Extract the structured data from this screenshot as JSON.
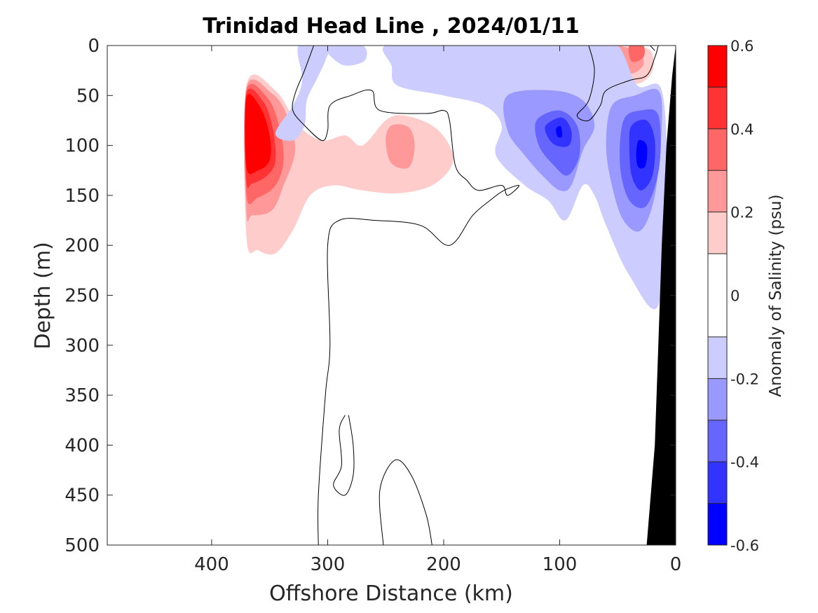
{
  "chart_data": {
    "type": "heatmap",
    "title": "Trinidad Head Line , 2024/01/11",
    "xlabel": "Offshore Distance (km)",
    "ylabel": "Depth (m)",
    "xlim": [
      490,
      0
    ],
    "ylim": [
      500,
      0
    ],
    "x_ticks": [
      400,
      300,
      200,
      100,
      0
    ],
    "y_ticks": [
      0,
      50,
      100,
      150,
      200,
      250,
      300,
      350,
      400,
      450,
      500
    ],
    "colorbar": {
      "label": "Anomaly of Salinity (psu)",
      "range": [
        -0.6,
        0.6
      ],
      "ticks": [
        0.6,
        0.4,
        0.2,
        0,
        -0.2,
        -0.4,
        -0.6
      ],
      "levels": [
        {
          "min": 0.5,
          "max": 0.6,
          "color": "#ff0000"
        },
        {
          "min": 0.4,
          "max": 0.5,
          "color": "#ff3333"
        },
        {
          "min": 0.3,
          "max": 0.4,
          "color": "#ff6666"
        },
        {
          "min": 0.2,
          "max": 0.3,
          "color": "#ff9999"
        },
        {
          "min": 0.1,
          "max": 0.2,
          "color": "#ffcccc"
        },
        {
          "min": -0.1,
          "max": 0.1,
          "color": "#ffffff"
        },
        {
          "min": -0.2,
          "max": -0.1,
          "color": "#ccccff"
        },
        {
          "min": -0.3,
          "max": -0.2,
          "color": "#9999ff"
        },
        {
          "min": -0.4,
          "max": -0.3,
          "color": "#6666ff"
        },
        {
          "min": -0.5,
          "max": -0.4,
          "color": "#3333ff"
        },
        {
          "min": -0.6,
          "max": -0.5,
          "color": "#0000ff"
        }
      ]
    },
    "features": [
      {
        "name": "offshore-salty-core",
        "level": 0.15,
        "color": "#ffcccc",
        "points": [
          [
            370,
            40
          ],
          [
            345,
            45
          ],
          [
            325,
            80
          ],
          [
            305,
            95
          ],
          [
            285,
            90
          ],
          [
            270,
            100
          ],
          [
            250,
            75
          ],
          [
            235,
            70
          ],
          [
            210,
            80
          ],
          [
            195,
            100
          ],
          [
            193,
            120
          ],
          [
            210,
            140
          ],
          [
            240,
            148
          ],
          [
            270,
            145
          ],
          [
            295,
            140
          ],
          [
            315,
            150
          ],
          [
            330,
            185
          ],
          [
            345,
            208
          ],
          [
            360,
            205
          ],
          [
            370,
            192
          ]
        ]
      },
      {
        "name": "offshore-salty-core",
        "level": 0.25,
        "color": "#ff9999",
        "points": [
          [
            370,
            42
          ],
          [
            348,
            48
          ],
          [
            335,
            70
          ],
          [
            328,
            105
          ],
          [
            338,
            140
          ],
          [
            348,
            165
          ],
          [
            365,
            170
          ],
          [
            370,
            165
          ]
        ]
      },
      {
        "name": "mid-salty-patch",
        "level": 0.25,
        "color": "#ff9999",
        "points": [
          [
            245,
            80
          ],
          [
            230,
            82
          ],
          [
            225,
            100
          ],
          [
            230,
            122
          ],
          [
            245,
            118
          ],
          [
            250,
            95
          ]
        ]
      },
      {
        "name": "offshore-salty-core",
        "level": 0.35,
        "color": "#ff6666",
        "points": [
          [
            370,
            45
          ],
          [
            352,
            52
          ],
          [
            342,
            80
          ],
          [
            338,
            115
          ],
          [
            345,
            140
          ],
          [
            360,
            152
          ],
          [
            370,
            150
          ]
        ]
      },
      {
        "name": "offshore-salty-core",
        "level": 0.45,
        "color": "#ff3333",
        "points": [
          [
            370,
            48
          ],
          [
            355,
            57
          ],
          [
            347,
            85
          ],
          [
            345,
            115
          ],
          [
            352,
            130
          ],
          [
            365,
            138
          ],
          [
            370,
            135
          ]
        ]
      },
      {
        "name": "offshore-salty-core",
        "level": 0.55,
        "color": "#ff0000",
        "points": [
          [
            370,
            52
          ],
          [
            358,
            62
          ],
          [
            350,
            90
          ],
          [
            350,
            115
          ],
          [
            360,
            125
          ],
          [
            370,
            122
          ]
        ]
      },
      {
        "name": "nearshore-salty-patch",
        "level": 0.15,
        "color": "#ffcccc",
        "points": [
          [
            60,
            0
          ],
          [
            40,
            0
          ],
          [
            22,
            5
          ],
          [
            20,
            25
          ],
          [
            32,
            38
          ],
          [
            50,
            32
          ],
          [
            58,
            18
          ]
        ]
      },
      {
        "name": "nearshore-salty-patch",
        "level": 0.25,
        "color": "#ff9999",
        "points": [
          [
            54,
            2
          ],
          [
            42,
            2
          ],
          [
            30,
            10
          ],
          [
            28,
            20
          ],
          [
            38,
            28
          ],
          [
            50,
            22
          ]
        ]
      },
      {
        "name": "nearshore-salty-patch",
        "level": 0.35,
        "color": "#ff6666",
        "points": [
          [
            40,
            0
          ],
          [
            28,
            0
          ],
          [
            28,
            12
          ],
          [
            38,
            16
          ]
        ]
      },
      {
        "name": "offshore-fresh-patch",
        "level": -0.15,
        "color": "#ccccff",
        "points": [
          [
            325,
            0
          ],
          [
            300,
            0
          ],
          [
            302,
            15
          ],
          [
            310,
            35
          ],
          [
            318,
            55
          ],
          [
            320,
            80
          ],
          [
            330,
            95
          ],
          [
            345,
            88
          ],
          [
            330,
            60
          ],
          [
            322,
            35
          ]
        ]
      },
      {
        "name": "near-top-fresh-patch",
        "level": -0.15,
        "color": "#ccccff",
        "points": [
          [
            300,
            0
          ],
          [
            270,
            0
          ],
          [
            268,
            15
          ],
          [
            285,
            20
          ],
          [
            298,
            10
          ]
        ]
      },
      {
        "name": "nearshore-fresh-band",
        "level": -0.15,
        "color": "#ccccff",
        "points": [
          [
            250,
            0
          ],
          [
            200,
            0
          ],
          [
            170,
            0
          ],
          [
            140,
            0
          ],
          [
            115,
            0
          ],
          [
            95,
            0
          ],
          [
            75,
            0
          ],
          [
            50,
            0
          ],
          [
            33,
            40
          ],
          [
            12,
            45
          ],
          [
            8,
            140
          ],
          [
            15,
            260
          ],
          [
            40,
            230
          ],
          [
            60,
            180
          ],
          [
            70,
            150
          ],
          [
            80,
            140
          ],
          [
            95,
            175
          ],
          [
            110,
            155
          ],
          [
            130,
            140
          ],
          [
            155,
            110
          ],
          [
            150,
            80
          ],
          [
            165,
            60
          ],
          [
            200,
            50
          ],
          [
            240,
            40
          ],
          [
            245,
            20
          ]
        ]
      },
      {
        "name": "nearshore-fresh-core",
        "level": -0.25,
        "color": "#9999ff",
        "points": [
          [
            145,
            50
          ],
          [
            105,
            45
          ],
          [
            80,
            55
          ],
          [
            70,
            80
          ],
          [
            80,
            105
          ],
          [
            90,
            140
          ],
          [
            100,
            145
          ],
          [
            115,
            130
          ],
          [
            130,
            110
          ],
          [
            145,
            85
          ]
        ]
      },
      {
        "name": "coastal-fresh-core",
        "level": -0.25,
        "color": "#9999ff",
        "points": [
          [
            55,
            60
          ],
          [
            35,
            50
          ],
          [
            15,
            45
          ],
          [
            12,
            80
          ],
          [
            18,
            150
          ],
          [
            30,
            185
          ],
          [
            45,
            175
          ],
          [
            55,
            140
          ],
          [
            60,
            100
          ]
        ]
      },
      {
        "name": "nearshore-fresh-core",
        "level": -0.35,
        "color": "#6666ff",
        "points": [
          [
            120,
            75
          ],
          [
            100,
            65
          ],
          [
            85,
            80
          ],
          [
            83,
            110
          ],
          [
            93,
            130
          ],
          [
            105,
            120
          ],
          [
            118,
            100
          ]
        ]
      },
      {
        "name": "coastal-fresh-core",
        "level": -0.35,
        "color": "#6666ff",
        "points": [
          [
            45,
            75
          ],
          [
            30,
            65
          ],
          [
            15,
            70
          ],
          [
            14,
            120
          ],
          [
            25,
            160
          ],
          [
            40,
            155
          ],
          [
            48,
            120
          ]
        ]
      },
      {
        "name": "nearshore-fresh-core",
        "level": -0.45,
        "color": "#3333ff",
        "points": [
          [
            112,
            80
          ],
          [
            98,
            72
          ],
          [
            90,
            85
          ],
          [
            92,
            100
          ],
          [
            103,
            100
          ],
          [
            110,
            92
          ]
        ]
      },
      {
        "name": "coastal-fresh-core",
        "level": -0.45,
        "color": "#3333ff",
        "points": [
          [
            38,
            80
          ],
          [
            25,
            75
          ],
          [
            18,
            95
          ],
          [
            20,
            130
          ],
          [
            30,
            145
          ],
          [
            38,
            130
          ],
          [
            40,
            100
          ]
        ]
      },
      {
        "name": "nearshore-fresh-core",
        "level": -0.55,
        "color": "#0000ff",
        "points": [
          [
            103,
            83
          ],
          [
            99,
            81
          ],
          [
            98,
            91
          ],
          [
            102,
            91
          ]
        ]
      },
      {
        "name": "coastal-fresh-core",
        "level": -0.55,
        "color": "#0000ff",
        "points": [
          [
            32,
            95
          ],
          [
            25,
            100
          ],
          [
            26,
            120
          ],
          [
            32,
            122
          ],
          [
            34,
            110
          ]
        ]
      }
    ],
    "zero_contours": [
      [
        [
          312,
          0
        ],
        [
          320,
          25
        ],
        [
          328,
          48
        ],
        [
          330,
          65
        ],
        [
          320,
          80
        ],
        [
          305,
          95
        ],
        [
          300,
          85
        ],
        [
          298,
          60
        ],
        [
          280,
          50
        ],
        [
          262,
          45
        ],
        [
          255,
          65
        ],
        [
          215,
          68
        ],
        [
          200,
          65
        ],
        [
          195,
          75
        ],
        [
          190,
          120
        ],
        [
          180,
          135
        ],
        [
          170,
          145
        ],
        [
          150,
          140
        ],
        [
          145,
          150
        ],
        [
          135,
          140
        ],
        [
          148,
          145
        ],
        [
          160,
          155
        ],
        [
          175,
          170
        ],
        [
          195,
          200
        ],
        [
          220,
          180
        ],
        [
          260,
          175
        ],
        [
          290,
          175
        ],
        [
          300,
          200
        ],
        [
          298,
          300
        ],
        [
          302,
          350
        ],
        [
          308,
          450
        ],
        [
          308,
          500
        ]
      ],
      [
        [
          75,
          0
        ],
        [
          70,
          25
        ],
        [
          75,
          55
        ],
        [
          85,
          70
        ],
        [
          75,
          75
        ],
        [
          65,
          60
        ],
        [
          60,
          45
        ],
        [
          40,
          35
        ],
        [
          25,
          30
        ],
        [
          18,
          12
        ],
        [
          15,
          0
        ]
      ],
      [
        [
          18,
          5
        ],
        [
          22,
          0
        ]
      ],
      [
        [
          285,
          370
        ],
        [
          290,
          385
        ],
        [
          288,
          420
        ],
        [
          295,
          440
        ],
        [
          285,
          450
        ],
        [
          278,
          430
        ],
        [
          278,
          400
        ],
        [
          282,
          370
        ]
      ],
      [
        [
          252,
          500
        ],
        [
          255,
          445
        ],
        [
          242,
          415
        ],
        [
          228,
          430
        ],
        [
          215,
          470
        ],
        [
          210,
          500
        ]
      ]
    ],
    "seafloor": {
      "color": "#000000",
      "points": [
        [
          0,
          0
        ],
        [
          0,
          500
        ],
        [
          25,
          500
        ],
        [
          18,
          400
        ],
        [
          15,
          300
        ],
        [
          12,
          200
        ],
        [
          8,
          100
        ],
        [
          3,
          30
        ]
      ]
    }
  }
}
